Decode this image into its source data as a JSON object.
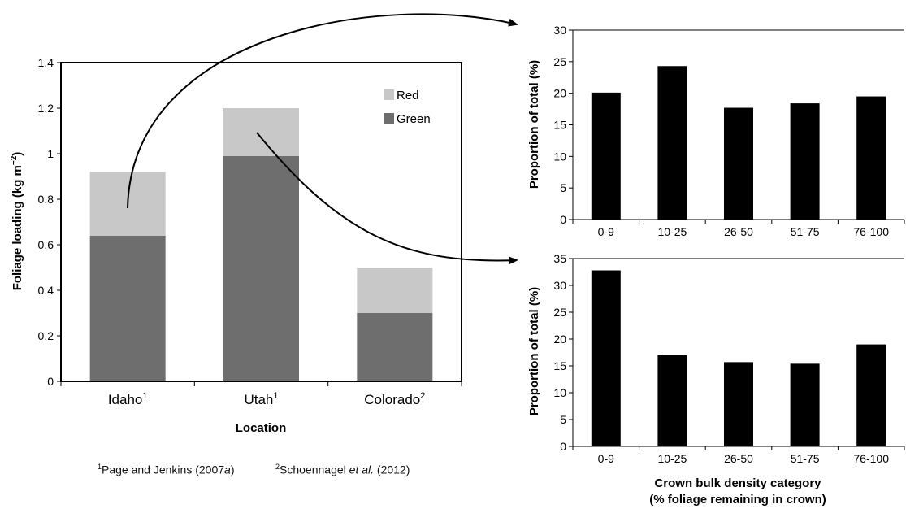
{
  "colors": {
    "red": "#c8c8c8",
    "green": "#6e6e6e",
    "bar": "#000000",
    "axis": "#000000"
  },
  "chart_data": [
    {
      "id": "foliage",
      "type": "bar",
      "stacked": true,
      "title": "",
      "xlabel": "Location",
      "ylabel": "Foliage loading (kg m",
      "ylabel_sup": "−2",
      "ylabel_close": ")",
      "ylim": [
        0,
        1.4
      ],
      "yticks": [
        "0",
        "0.2",
        "0.4",
        "0.6",
        "0.8",
        "1",
        "1.2",
        "1.4"
      ],
      "categories": [
        {
          "label": "Idaho",
          "sup": "1"
        },
        {
          "label": "Utah",
          "sup": "1"
        },
        {
          "label": "Colorado",
          "sup": "2"
        }
      ],
      "series": [
        {
          "name": "Green",
          "values": [
            0.64,
            0.99,
            0.3
          ]
        },
        {
          "name": "Red",
          "values": [
            0.28,
            0.21,
            0.2
          ]
        }
      ],
      "legend": "top-right",
      "grid": false
    },
    {
      "id": "utah_dist",
      "type": "bar",
      "title": "",
      "xlabel": "",
      "ylabel": "Proportion of total (%)",
      "ylim": [
        0,
        30
      ],
      "yticks": [
        "0",
        "5",
        "10",
        "15",
        "20",
        "25",
        "30"
      ],
      "categories": [
        "0-9",
        "10-25",
        "26-50",
        "51-75",
        "76-100"
      ],
      "values": [
        20.1,
        24.3,
        17.7,
        18.4,
        19.5
      ],
      "grid": false
    },
    {
      "id": "idaho_dist",
      "type": "bar",
      "title": "",
      "xlabel": "Crown bulk density category",
      "xlabel2": "(% foliage remaining in crown)",
      "ylabel": "Proportion of total (%)",
      "ylim": [
        0,
        35
      ],
      "yticks": [
        "0",
        "5",
        "10",
        "15",
        "20",
        "25",
        "30",
        "35"
      ],
      "categories": [
        "0-9",
        "10-25",
        "26-50",
        "51-75",
        "76-100"
      ],
      "values": [
        32.8,
        17.0,
        15.7,
        15.4,
        19.0
      ],
      "grid": false
    }
  ],
  "footnotes": [
    {
      "sup": "1",
      "text": "Page and Jenkins (2007",
      "italic": "a",
      "close": ")"
    },
    {
      "sup": "2",
      "text": "Schoennagel ",
      "italic": "et al.",
      "close": " (2012)"
    }
  ]
}
